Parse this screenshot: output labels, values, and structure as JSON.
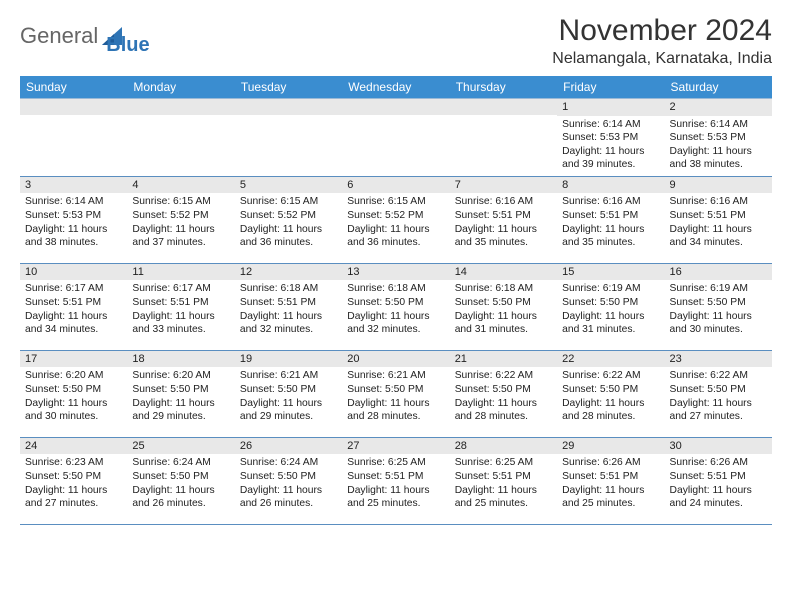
{
  "brand": {
    "part1": "General",
    "part2": "Blue"
  },
  "title": "November 2024",
  "location": "Nelamangala, Karnataka, India",
  "colors": {
    "header_bg": "#3a8dd0",
    "grid_line": "#5a8ec0",
    "daynum_bg": "#e8e8e8",
    "logo_blue": "#2e74b5"
  },
  "weekdays": [
    "Sunday",
    "Monday",
    "Tuesday",
    "Wednesday",
    "Thursday",
    "Friday",
    "Saturday"
  ],
  "weeks": [
    [
      {
        "n": "",
        "empty": true
      },
      {
        "n": "",
        "empty": true
      },
      {
        "n": "",
        "empty": true
      },
      {
        "n": "",
        "empty": true
      },
      {
        "n": "",
        "empty": true
      },
      {
        "n": "1",
        "sr": "6:14 AM",
        "ss": "5:53 PM",
        "dl": "11 hours and 39 minutes."
      },
      {
        "n": "2",
        "sr": "6:14 AM",
        "ss": "5:53 PM",
        "dl": "11 hours and 38 minutes."
      }
    ],
    [
      {
        "n": "3",
        "sr": "6:14 AM",
        "ss": "5:53 PM",
        "dl": "11 hours and 38 minutes."
      },
      {
        "n": "4",
        "sr": "6:15 AM",
        "ss": "5:52 PM",
        "dl": "11 hours and 37 minutes."
      },
      {
        "n": "5",
        "sr": "6:15 AM",
        "ss": "5:52 PM",
        "dl": "11 hours and 36 minutes."
      },
      {
        "n": "6",
        "sr": "6:15 AM",
        "ss": "5:52 PM",
        "dl": "11 hours and 36 minutes."
      },
      {
        "n": "7",
        "sr": "6:16 AM",
        "ss": "5:51 PM",
        "dl": "11 hours and 35 minutes."
      },
      {
        "n": "8",
        "sr": "6:16 AM",
        "ss": "5:51 PM",
        "dl": "11 hours and 35 minutes."
      },
      {
        "n": "9",
        "sr": "6:16 AM",
        "ss": "5:51 PM",
        "dl": "11 hours and 34 minutes."
      }
    ],
    [
      {
        "n": "10",
        "sr": "6:17 AM",
        "ss": "5:51 PM",
        "dl": "11 hours and 34 minutes."
      },
      {
        "n": "11",
        "sr": "6:17 AM",
        "ss": "5:51 PM",
        "dl": "11 hours and 33 minutes."
      },
      {
        "n": "12",
        "sr": "6:18 AM",
        "ss": "5:51 PM",
        "dl": "11 hours and 32 minutes."
      },
      {
        "n": "13",
        "sr": "6:18 AM",
        "ss": "5:50 PM",
        "dl": "11 hours and 32 minutes."
      },
      {
        "n": "14",
        "sr": "6:18 AM",
        "ss": "5:50 PM",
        "dl": "11 hours and 31 minutes."
      },
      {
        "n": "15",
        "sr": "6:19 AM",
        "ss": "5:50 PM",
        "dl": "11 hours and 31 minutes."
      },
      {
        "n": "16",
        "sr": "6:19 AM",
        "ss": "5:50 PM",
        "dl": "11 hours and 30 minutes."
      }
    ],
    [
      {
        "n": "17",
        "sr": "6:20 AM",
        "ss": "5:50 PM",
        "dl": "11 hours and 30 minutes."
      },
      {
        "n": "18",
        "sr": "6:20 AM",
        "ss": "5:50 PM",
        "dl": "11 hours and 29 minutes."
      },
      {
        "n": "19",
        "sr": "6:21 AM",
        "ss": "5:50 PM",
        "dl": "11 hours and 29 minutes."
      },
      {
        "n": "20",
        "sr": "6:21 AM",
        "ss": "5:50 PM",
        "dl": "11 hours and 28 minutes."
      },
      {
        "n": "21",
        "sr": "6:22 AM",
        "ss": "5:50 PM",
        "dl": "11 hours and 28 minutes."
      },
      {
        "n": "22",
        "sr": "6:22 AM",
        "ss": "5:50 PM",
        "dl": "11 hours and 28 minutes."
      },
      {
        "n": "23",
        "sr": "6:22 AM",
        "ss": "5:50 PM",
        "dl": "11 hours and 27 minutes."
      }
    ],
    [
      {
        "n": "24",
        "sr": "6:23 AM",
        "ss": "5:50 PM",
        "dl": "11 hours and 27 minutes."
      },
      {
        "n": "25",
        "sr": "6:24 AM",
        "ss": "5:50 PM",
        "dl": "11 hours and 26 minutes."
      },
      {
        "n": "26",
        "sr": "6:24 AM",
        "ss": "5:50 PM",
        "dl": "11 hours and 26 minutes."
      },
      {
        "n": "27",
        "sr": "6:25 AM",
        "ss": "5:51 PM",
        "dl": "11 hours and 25 minutes."
      },
      {
        "n": "28",
        "sr": "6:25 AM",
        "ss": "5:51 PM",
        "dl": "11 hours and 25 minutes."
      },
      {
        "n": "29",
        "sr": "6:26 AM",
        "ss": "5:51 PM",
        "dl": "11 hours and 25 minutes."
      },
      {
        "n": "30",
        "sr": "6:26 AM",
        "ss": "5:51 PM",
        "dl": "11 hours and 24 minutes."
      }
    ]
  ],
  "labels": {
    "sunrise": "Sunrise:",
    "sunset": "Sunset:",
    "daylight": "Daylight:"
  }
}
